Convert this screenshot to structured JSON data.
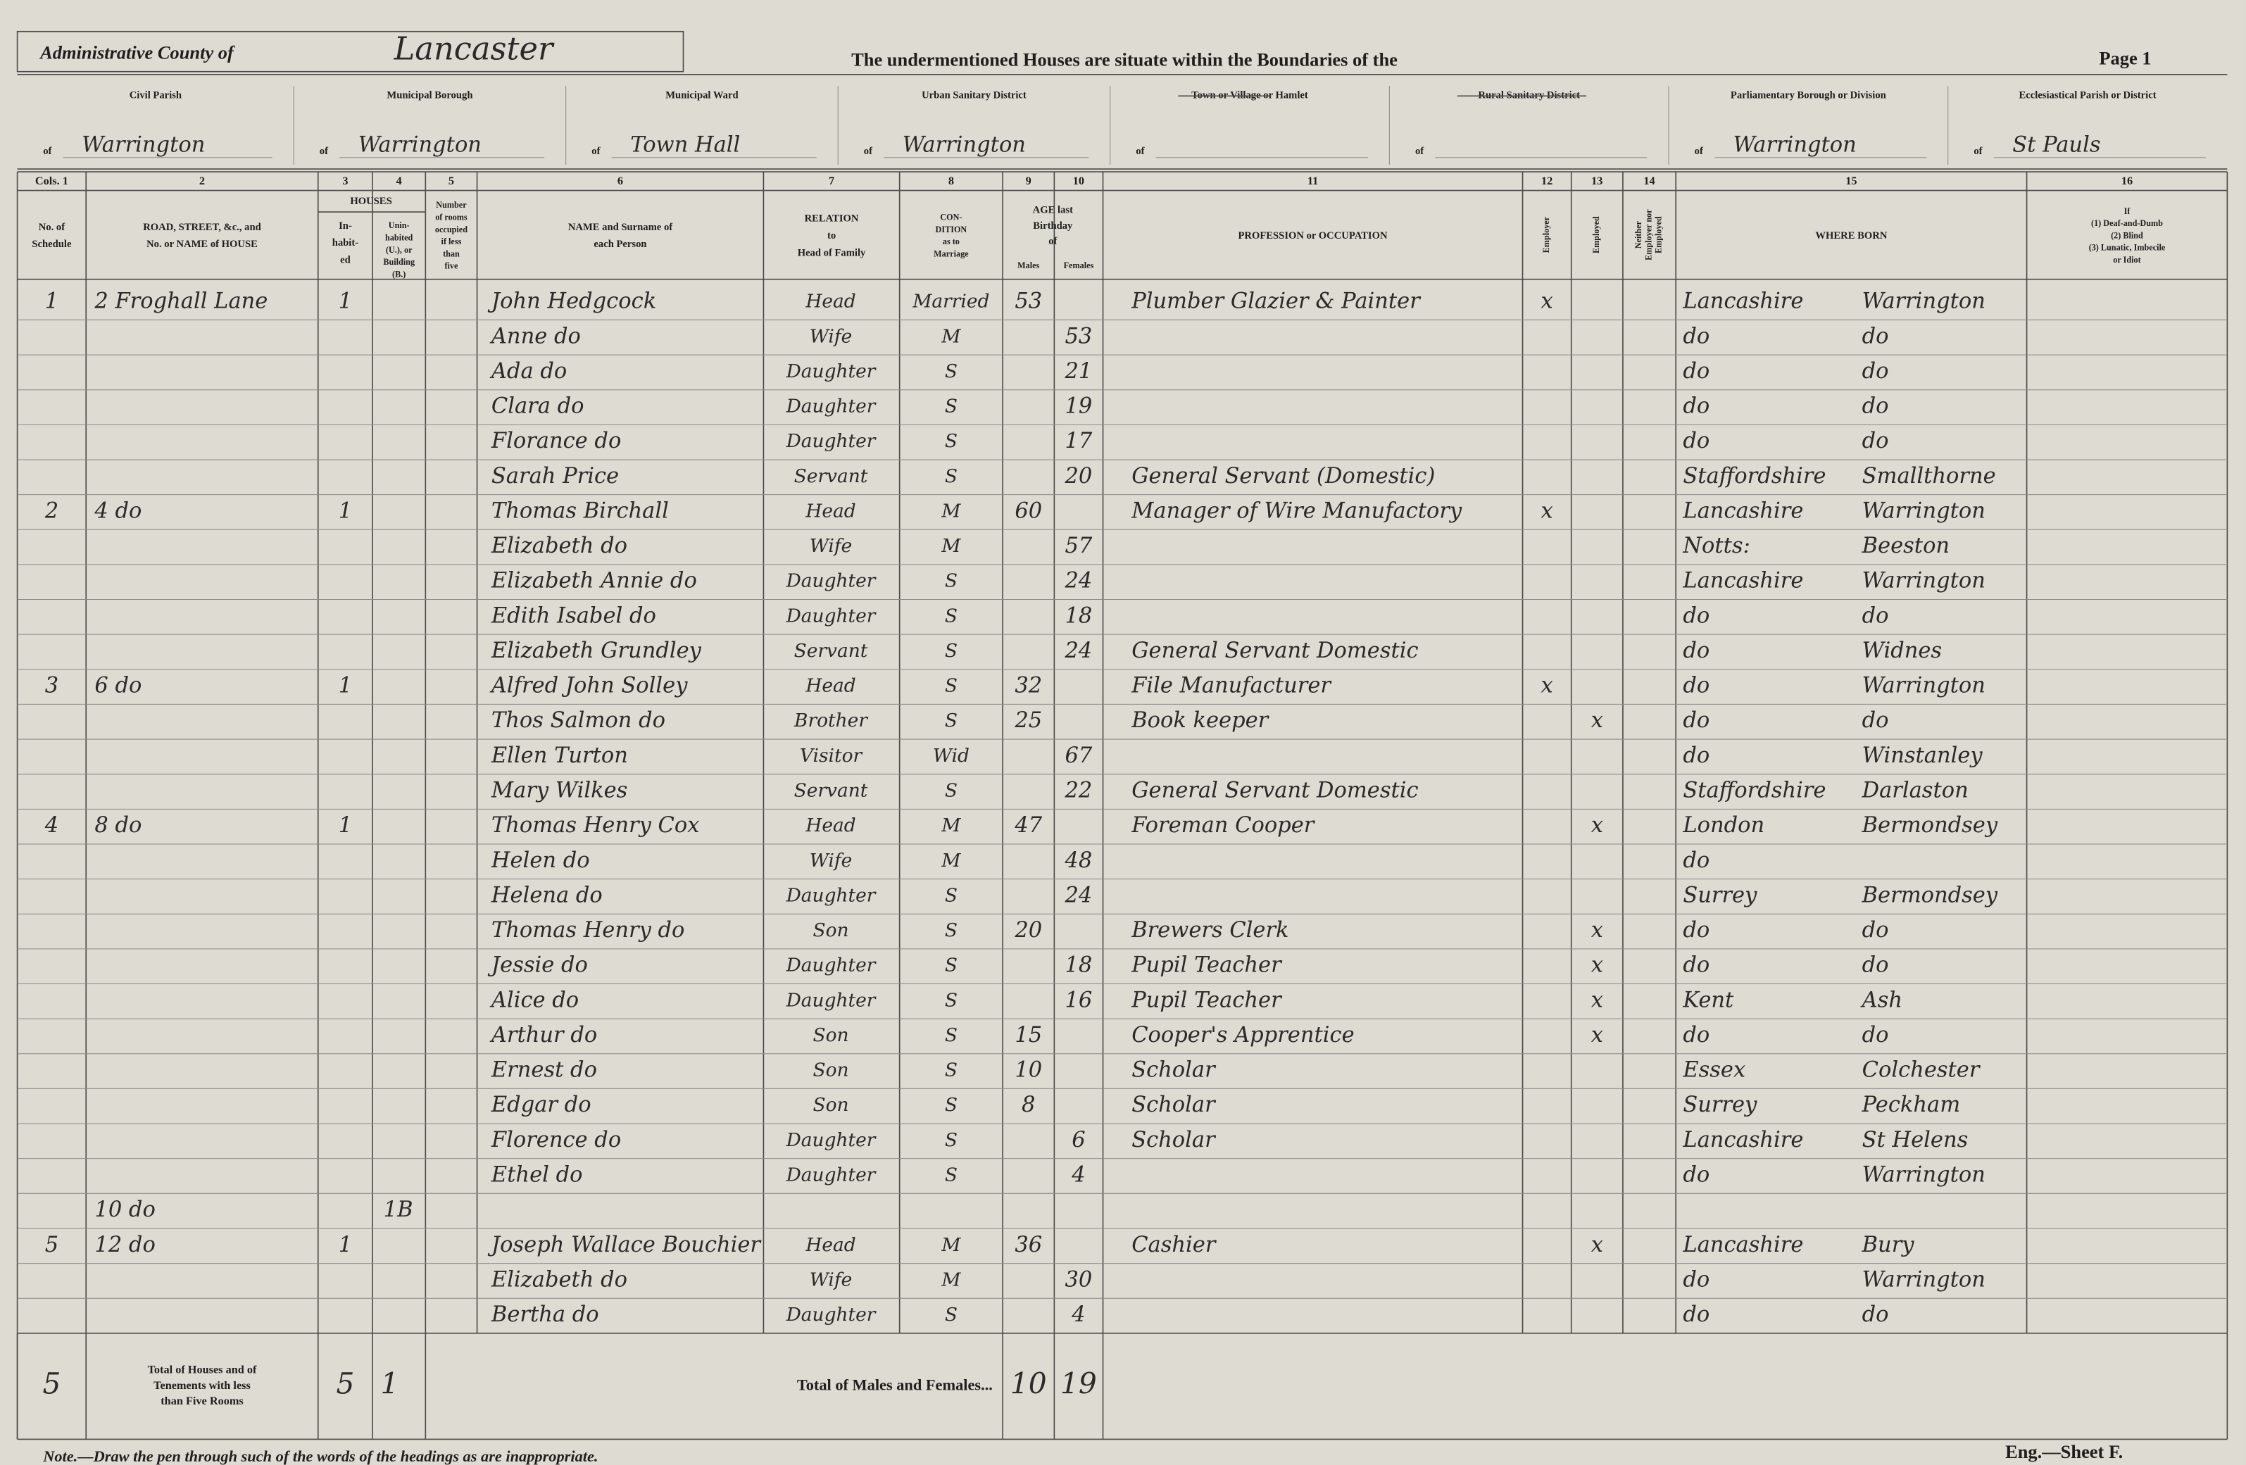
{
  "header": {
    "county_label": "Administrative County of",
    "county": "Lancaster",
    "intro": "The undermentioned Houses are situate within the Boundaries of the",
    "page": "Page 1"
  },
  "boundary_prefix": "of",
  "boundaries": [
    {
      "label": "Civil Parish",
      "value": "Warrington"
    },
    {
      "label": "Municipal Borough",
      "value": "Warrington"
    },
    {
      "label": "Municipal Ward",
      "value": "Town Hall"
    },
    {
      "label": "Urban Sanitary District",
      "value": "Warrington"
    },
    {
      "label": "Town or Village or Hamlet"
    },
    {
      "label": "Rural Sanitary District"
    },
    {
      "label": "Parliamentary Borough or Division",
      "value": "Warrington"
    },
    {
      "label": "Ecclesiastical Parish or District",
      "value": "St Pauls"
    }
  ],
  "houses_head": "HOUSES",
  "age_head": [
    "AGE last",
    "Birthday",
    "of"
  ],
  "columns": [
    {
      "num": "Cols. 1",
      "head": [
        "No. of",
        "Schedule"
      ]
    },
    {
      "num": "2",
      "head": [
        "ROAD, STREET, &c., and",
        "No. or NAME of HOUSE"
      ]
    },
    {
      "num": "3",
      "head": [
        "In-",
        "habit-",
        "ed"
      ]
    },
    {
      "num": "4",
      "head": [
        "Unin-",
        "habited",
        "(U.), or",
        "Building",
        "(B.)"
      ]
    },
    {
      "num": "5",
      "head": [
        "Number",
        "of rooms",
        "occupied",
        "if less",
        "than",
        "five"
      ]
    },
    {
      "num": "6",
      "head": [
        "NAME and Surname of",
        "each Person"
      ]
    },
    {
      "num": "7",
      "head": [
        "RELATION",
        "to",
        "Head of Family"
      ]
    },
    {
      "num": "8",
      "head": [
        "CON-",
        "DITION",
        "as to",
        "Marriage"
      ]
    },
    {
      "num": "9",
      "head": [
        "Males"
      ]
    },
    {
      "num": "10",
      "head": [
        "Females"
      ]
    },
    {
      "num": "11",
      "head": [
        "PROFESSION or OCCUPATION"
      ]
    },
    {
      "num": "12",
      "head": [
        "Employer"
      ]
    },
    {
      "num": "13",
      "head": [
        "Employed"
      ]
    },
    {
      "num": "14",
      "head": [
        "Neither",
        "Employer nor",
        "Employed"
      ]
    },
    {
      "num": "15",
      "head": [
        "WHERE BORN"
      ]
    },
    {
      "num": "16",
      "head": [
        "If",
        "(1) Deaf-and-Dumb",
        "(2) Blind",
        "(3) Lunatic, Imbecile",
        "or Idiot"
      ]
    }
  ],
  "rows": [
    {
      "schedule": "1",
      "address": "2 Froghall Lane",
      "inhabited": "1",
      "name": "John Hedgcock",
      "relation": "Head",
      "condition": "Married",
      "age_m": 53,
      "occupation": "Plumber Glazier & Painter",
      "employer": "x",
      "birth_county": "Lancashire",
      "birth_place": "Warrington"
    },
    {
      "name": "Anne do",
      "relation": "Wife",
      "condition": "M",
      "age_f": 53,
      "birth_county": "do",
      "birth_place": "do"
    },
    {
      "name": "Ada do",
      "relation": "Daughter",
      "condition": "S",
      "age_f": 21,
      "birth_county": "do",
      "birth_place": "do"
    },
    {
      "name": "Clara do",
      "relation": "Daughter",
      "condition": "S",
      "age_f": 19,
      "birth_county": "do",
      "birth_place": "do"
    },
    {
      "name": "Florance do",
      "relation": "Daughter",
      "condition": "S",
      "age_f": 17,
      "birth_county": "do",
      "birth_place": "do"
    },
    {
      "name": "Sarah Price",
      "relation": "Servant",
      "condition": "S",
      "age_f": 20,
      "occupation": "General Servant (Domestic)",
      "birth_county": "Staffordshire",
      "birth_place": "Smallthorne"
    },
    {
      "schedule": "2",
      "address": "4 do",
      "inhabited": "1",
      "name": "Thomas Birchall",
      "relation": "Head",
      "condition": "M",
      "age_m": 60,
      "occupation": "Manager of Wire Manufactory",
      "employer": "x",
      "birth_county": "Lancashire",
      "birth_place": "Warrington"
    },
    {
      "name": "Elizabeth do",
      "relation": "Wife",
      "condition": "M",
      "age_f": 57,
      "birth_county": "Notts:",
      "birth_place": "Beeston"
    },
    {
      "name": "Elizabeth Annie do",
      "relation": "Daughter",
      "condition": "S",
      "age_f": 24,
      "birth_county": "Lancashire",
      "birth_place": "Warrington"
    },
    {
      "name": "Edith Isabel do",
      "relation": "Daughter",
      "condition": "S",
      "age_f": 18,
      "birth_county": "do",
      "birth_place": "do"
    },
    {
      "name": "Elizabeth Grundley",
      "relation": "Servant",
      "condition": "S",
      "age_f": 24,
      "occupation": "General Servant Domestic",
      "birth_county": "do",
      "birth_place": "Widnes"
    },
    {
      "schedule": "3",
      "address": "6 do",
      "inhabited": "1",
      "name": "Alfred John Solley",
      "relation": "Head",
      "condition": "S",
      "age_m": 32,
      "occupation": "File Manufacturer",
      "employer": "x",
      "birth_county": "do",
      "birth_place": "Warrington"
    },
    {
      "name": "Thos Salmon do",
      "relation": "Brother",
      "condition": "S",
      "age_m": 25,
      "occupation": "Book keeper",
      "employed": "x",
      "birth_county": "do",
      "birth_place": "do"
    },
    {
      "name": "Ellen Turton",
      "relation": "Visitor",
      "condition": "Wid",
      "age_f": 67,
      "birth_county": "do",
      "birth_place": "Winstanley"
    },
    {
      "name": "Mary Wilkes",
      "relation": "Servant",
      "condition": "S",
      "age_f": 22,
      "occupation": "General Servant Domestic",
      "birth_county": "Staffordshire",
      "birth_place": "Darlaston"
    },
    {
      "schedule": "4",
      "address": "8 do",
      "inhabited": "1",
      "name": "Thomas Henry Cox",
      "relation": "Head",
      "condition": "M",
      "age_m": 47,
      "occupation": "Foreman Cooper",
      "employed": "x",
      "birth_county": "London",
      "birth_place": "Bermondsey"
    },
    {
      "name": "Helen do",
      "relation": "Wife",
      "condition": "M",
      "age_f": 48,
      "birth_county": "do"
    },
    {
      "name": "Helena do",
      "relation": "Daughter",
      "condition": "S",
      "age_f": 24,
      "birth_county": "Surrey",
      "birth_place": "Bermondsey"
    },
    {
      "name": "Thomas Henry do",
      "relation": "Son",
      "condition": "S",
      "age_m": 20,
      "occupation": "Brewers Clerk",
      "employed": "x",
      "birth_county": "do",
      "birth_place": "do"
    },
    {
      "name": "Jessie do",
      "relation": "Daughter",
      "condition": "S",
      "age_f": 18,
      "occupation": "Pupil Teacher",
      "employed": "x",
      "birth_county": "do",
      "birth_place": "do"
    },
    {
      "name": "Alice do",
      "relation": "Daughter",
      "condition": "S",
      "age_f": 16,
      "occupation": "Pupil Teacher",
      "employed": "x",
      "birth_county": "Kent",
      "birth_place": "Ash"
    },
    {
      "name": "Arthur do",
      "relation": "Son",
      "condition": "S",
      "age_m": 15,
      "occupation": "Cooper's Apprentice",
      "employed": "x",
      "birth_county": "do",
      "birth_place": "do"
    },
    {
      "name": "Ernest do",
      "relation": "Son",
      "condition": "S",
      "age_m": 10,
      "occupation": "Scholar",
      "birth_county": "Essex",
      "birth_place": "Colchester"
    },
    {
      "name": "Edgar do",
      "relation": "Son",
      "condition": "S",
      "age_m": 8,
      "occupation": "Scholar",
      "birth_county": "Surrey",
      "birth_place": "Peckham"
    },
    {
      "name": "Florence do",
      "relation": "Daughter",
      "condition": "S",
      "age_f": 6,
      "occupation": "Scholar",
      "birth_county": "Lancashire",
      "birth_place": "St Helens"
    },
    {
      "name": "Ethel do",
      "relation": "Daughter",
      "condition": "S",
      "age_f": 4,
      "birth_county": "do",
      "birth_place": "Warrington"
    },
    {
      "address": "10 do",
      "uninhabited": "1B"
    },
    {
      "schedule": "5",
      "address": "12 do",
      "inhabited": "1",
      "name": "Joseph Wallace Bouchier",
      "relation": "Head",
      "condition": "M",
      "age_m": 36,
      "occupation": "Cashier",
      "employed": "x",
      "birth_county": "Lancashire",
      "birth_place": "Bury"
    },
    {
      "name": "Elizabeth do",
      "relation": "Wife",
      "condition": "M",
      "age_f": 30,
      "birth_county": "do",
      "birth_place": "Warrington"
    },
    {
      "name": "Bertha do",
      "relation": "Daughter",
      "condition": "S",
      "age_f": 4,
      "birth_county": "do",
      "birth_place": "do"
    }
  ],
  "totals": {
    "label": [
      "Total of Houses and of",
      "Tenements with less",
      "than Five Rooms"
    ],
    "schedules": "5",
    "inhabited": "5",
    "uninhabited": "1",
    "sex_label": "Total of Males and Females...",
    "males": 10,
    "females": 19
  },
  "footer": {
    "note": "Note.—Draw the pen through such of the words of the headings as are inappropriate.",
    "sheet": "Eng.—Sheet F."
  }
}
